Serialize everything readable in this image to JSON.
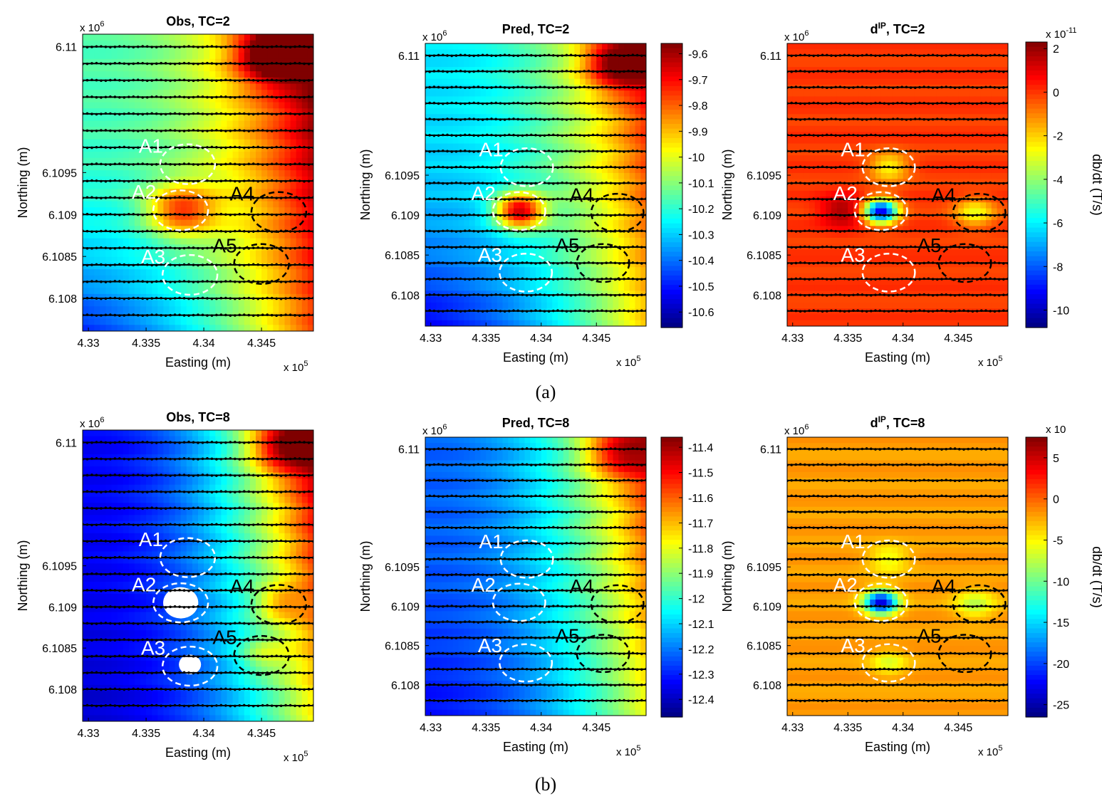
{
  "figure": {
    "captions": [
      "(a)",
      "(b)"
    ],
    "colormap": [
      "#00007f",
      "#0000ff",
      "#007fff",
      "#00ffff",
      "#7fff7f",
      "#ffff00",
      "#ff7f00",
      "#ff0000",
      "#7f0000"
    ],
    "line_color": "#000000",
    "anomaly_ring_colors": {
      "A1": "#ffffff",
      "A2": "#ffffff",
      "A3": "#ffffff",
      "A4": "#000000",
      "A5": "#000000"
    }
  },
  "chart_data": [
    {
      "type": "heatmap",
      "title": "Obs, TC=2",
      "xlabel": "Easting (m)",
      "ylabel": "Northing (m)",
      "x_exponent": "x 10",
      "x_exponent_power": "5",
      "y_exponent": "x 10",
      "y_exponent_power": "6",
      "xticks": [
        "4.33",
        "4.335",
        "4.34",
        "4.345"
      ],
      "yticks": [
        "6.11",
        "6.1095",
        "6.109",
        "6.1085",
        "6.108"
      ],
      "xlim": [
        432950,
        434950
      ],
      "ylim": [
        6107610,
        6111150
      ],
      "field": {
        "background": 0.45,
        "east_gradient": 0.6,
        "south_low": -0.3,
        "blobs": [
          {
            "e": 433800,
            "n": 6109050,
            "amp": 0.35,
            "r": 300
          },
          {
            "e": 434600,
            "n": 6110900,
            "amp": 0.4,
            "r": 300
          }
        ]
      },
      "anomalies": [
        {
          "label": "A1",
          "e": 433860,
          "n": 6109600,
          "r": 250
        },
        {
          "label": "A2",
          "e": 433800,
          "n": 6109050,
          "r": 250
        },
        {
          "label": "A3",
          "e": 433880,
          "n": 6108280,
          "r": 250
        },
        {
          "label": "A4",
          "e": 434650,
          "n": 6109030,
          "r": 250
        },
        {
          "label": "A5",
          "e": 434500,
          "n": 6108410,
          "r": 250
        }
      ],
      "survey_lines_n": [
        6111000,
        6110800,
        6110600,
        6110400,
        6110200,
        6110000,
        6109800,
        6109600,
        6109400,
        6109200,
        6109000,
        6108800,
        6108600,
        6108400,
        6108200,
        6108000,
        6107800
      ]
    },
    {
      "type": "heatmap",
      "title": "Pred, TC=2",
      "xlabel": "Easting (m)",
      "ylabel": "Northing (m)",
      "x_exponent": "x 10",
      "x_exponent_power": "5",
      "y_exponent": "x 10",
      "y_exponent_power": "6",
      "xticks": [
        "4.33",
        "4.335",
        "4.34",
        "4.345"
      ],
      "yticks": [
        "6.11",
        "6.1095",
        "6.109",
        "6.1085",
        "6.108"
      ],
      "xlim": [
        432950,
        434950
      ],
      "ylim": [
        6107610,
        6111150
      ],
      "colorbar": {
        "ticks": [
          "-9.6",
          "-9.7",
          "-9.8",
          "-9.9",
          "-10",
          "-10.1",
          "-10.2",
          "-10.3",
          "-10.4",
          "-10.5",
          "-10.6"
        ],
        "min": -10.66,
        "max": -9.56
      },
      "field": {
        "background": 0.35,
        "east_gradient": 0.55,
        "south_low": -0.25,
        "blobs": [
          {
            "e": 433800,
            "n": 6109050,
            "amp": 0.55,
            "r": 220
          },
          {
            "e": 434700,
            "n": 6110900,
            "amp": 0.35,
            "r": 300
          }
        ]
      },
      "anomalies": [
        {
          "label": "A1",
          "e": 433870,
          "n": 6109600,
          "r": 250
        },
        {
          "label": "A2",
          "e": 433800,
          "n": 6109050,
          "r": 250
        },
        {
          "label": "A3",
          "e": 433860,
          "n": 6108280,
          "r": 250
        },
        {
          "label": "A4",
          "e": 434690,
          "n": 6109030,
          "r": 250
        },
        {
          "label": "A5",
          "e": 434560,
          "n": 6108400,
          "r": 250
        }
      ],
      "survey_lines_n": [
        6111000,
        6110800,
        6110600,
        6110400,
        6110200,
        6110000,
        6109800,
        6109600,
        6109400,
        6109200,
        6109000,
        6108800,
        6108600,
        6108400,
        6108200,
        6108000,
        6107800
      ]
    },
    {
      "type": "heatmap",
      "title": "d",
      "title_superscript": "IP",
      "title_suffix": ", TC=2",
      "xlabel": "Easting (m)",
      "ylabel": "Northing (m)",
      "x_exponent": "x 10",
      "x_exponent_power": "5",
      "y_exponent": "x 10",
      "y_exponent_power": "6",
      "xticks": [
        "4.33",
        "4.335",
        "4.34",
        "4.345"
      ],
      "yticks": [
        "6.11",
        "6.1095",
        "6.109",
        "6.1085",
        "6.108"
      ],
      "xlim": [
        432950,
        434950
      ],
      "ylim": [
        6107610,
        6111150
      ],
      "colorbar": {
        "ticks": [
          "2",
          "0",
          "-2",
          "-4",
          "-6",
          "-8",
          "-10"
        ],
        "min": -10.8,
        "max": 2.3,
        "label": "db/dt (T/s)",
        "exponent": "x 10",
        "exponent_power": "-11"
      },
      "field": {
        "background": 0.82,
        "east_gradient": 0.0,
        "south_low": 0.0,
        "blobs": [
          {
            "e": 433800,
            "n": 6109050,
            "amp": -0.7,
            "r": 150
          },
          {
            "e": 433450,
            "n": 6109050,
            "amp": 0.15,
            "r": 200
          },
          {
            "e": 433870,
            "n": 6109600,
            "amp": -0.2,
            "r": 180
          },
          {
            "e": 434650,
            "n": 6109030,
            "amp": -0.2,
            "r": 180
          }
        ]
      },
      "anomalies": [
        {
          "label": "A1",
          "e": 433870,
          "n": 6109600,
          "r": 250
        },
        {
          "label": "A2",
          "e": 433800,
          "n": 6109050,
          "r": 250
        },
        {
          "label": "A3",
          "e": 433870,
          "n": 6108280,
          "r": 250
        },
        {
          "label": "A4",
          "e": 434690,
          "n": 6109030,
          "r": 250
        },
        {
          "label": "A5",
          "e": 434560,
          "n": 6108400,
          "r": 250
        }
      ],
      "survey_lines_n": [
        6111000,
        6110800,
        6110600,
        6110400,
        6110200,
        6110000,
        6109800,
        6109600,
        6109400,
        6109200,
        6109000,
        6108800,
        6108600,
        6108400,
        6108200,
        6108000,
        6107800
      ]
    },
    {
      "type": "heatmap",
      "title": "Obs, TC=8",
      "xlabel": "Easting (m)",
      "ylabel": "Northing (m)",
      "x_exponent": "x 10",
      "x_exponent_power": "5",
      "y_exponent": "x 10",
      "y_exponent_power": "6",
      "xticks": [
        "4.33",
        "4.335",
        "4.34",
        "4.345"
      ],
      "yticks": [
        "6.11",
        "6.1095",
        "6.109",
        "6.1085",
        "6.108"
      ],
      "xlim": [
        432950,
        434950
      ],
      "ylim": [
        6107610,
        6111150
      ],
      "field": {
        "background": 0.12,
        "east_gradient": 0.85,
        "south_low": -0.05,
        "blobs": [
          {
            "e": 434650,
            "n": 6109030,
            "amp": 0.15,
            "r": 200
          },
          {
            "e": 434500,
            "n": 6108410,
            "amp": 0.12,
            "r": 200
          },
          {
            "e": 434700,
            "n": 6110950,
            "amp": 0.3,
            "r": 300
          }
        ]
      },
      "blanks": [
        {
          "e": 433800,
          "n": 6109050,
          "r": 190
        },
        {
          "e": 433880,
          "n": 6108300,
          "r": 120
        }
      ],
      "anomalies": [
        {
          "label": "A1",
          "e": 433860,
          "n": 6109600,
          "r": 250
        },
        {
          "label": "A2",
          "e": 433800,
          "n": 6109050,
          "r": 250
        },
        {
          "label": "A3",
          "e": 433880,
          "n": 6108280,
          "r": 250
        },
        {
          "label": "A4",
          "e": 434650,
          "n": 6109030,
          "r": 250
        },
        {
          "label": "A5",
          "e": 434500,
          "n": 6108410,
          "r": 250
        }
      ],
      "survey_lines_n": [
        6111000,
        6110800,
        6110600,
        6110400,
        6110200,
        6110000,
        6109800,
        6109600,
        6109400,
        6109200,
        6109000,
        6108800,
        6108600,
        6108400,
        6108200,
        6108000,
        6107800
      ]
    },
    {
      "type": "heatmap",
      "title": "Pred, TC=8",
      "xlabel": "Easting (m)",
      "ylabel": "Northing (m)",
      "x_exponent": "x 10",
      "x_exponent_power": "5",
      "y_exponent": "x 10",
      "y_exponent_power": "6",
      "xticks": [
        "4.33",
        "4.335",
        "4.34",
        "4.345"
      ],
      "yticks": [
        "6.11",
        "6.1095",
        "6.109",
        "6.1085",
        "6.108"
      ],
      "xlim": [
        432950,
        434950
      ],
      "ylim": [
        6107610,
        6111150
      ],
      "colorbar": {
        "ticks": [
          "-11.4",
          "-11.5",
          "-11.6",
          "-11.7",
          "-11.8",
          "-11.9",
          "-12",
          "-12.1",
          "-12.2",
          "-12.3",
          "-12.4"
        ],
        "min": -12.47,
        "max": -11.36
      },
      "field": {
        "background": 0.22,
        "east_gradient": 0.65,
        "south_low": -0.1,
        "blobs": [
          {
            "e": 434700,
            "n": 6110950,
            "amp": 0.25,
            "r": 300
          }
        ]
      },
      "anomalies": [
        {
          "label": "A1",
          "e": 433870,
          "n": 6109600,
          "r": 250
        },
        {
          "label": "A2",
          "e": 433800,
          "n": 6109050,
          "r": 250
        },
        {
          "label": "A3",
          "e": 433860,
          "n": 6108280,
          "r": 250
        },
        {
          "label": "A4",
          "e": 434690,
          "n": 6109030,
          "r": 250
        },
        {
          "label": "A5",
          "e": 434560,
          "n": 6108400,
          "r": 250
        }
      ],
      "survey_lines_n": [
        6111000,
        6110800,
        6110600,
        6110400,
        6110200,
        6110000,
        6109800,
        6109600,
        6109400,
        6109200,
        6109000,
        6108800,
        6108600,
        6108400,
        6108200,
        6108000,
        6107800
      ]
    },
    {
      "type": "heatmap",
      "title": "d",
      "title_superscript": "IP",
      "title_suffix": ", TC=8",
      "xlabel": "Easting (m)",
      "ylabel": "Northing (m)",
      "x_exponent": "x 10",
      "x_exponent_power": "5",
      "y_exponent": "x 10",
      "y_exponent_power": "6",
      "xticks": [
        "4.33",
        "4.335",
        "4.34",
        "4.345"
      ],
      "yticks": [
        "6.11",
        "6.1095",
        "6.109",
        "6.1085",
        "6.108"
      ],
      "xlim": [
        432950,
        434950
      ],
      "ylim": [
        6107610,
        6111150
      ],
      "colorbar": {
        "ticks": [
          "5",
          "0",
          "-5",
          "-10",
          "-15",
          "-20",
          "-25"
        ],
        "min": -26.5,
        "max": 7.5,
        "label": "db/dt (T/s)",
        "exponent": "x 10",
        "exponent_power": ""
      },
      "field": {
        "background": 0.72,
        "east_gradient": 0.0,
        "south_low": 0.0,
        "blobs": [
          {
            "e": 433800,
            "n": 6109050,
            "amp": -0.62,
            "r": 150
          },
          {
            "e": 433870,
            "n": 6109600,
            "amp": -0.12,
            "r": 180
          },
          {
            "e": 434650,
            "n": 6109030,
            "amp": -0.15,
            "r": 180
          },
          {
            "e": 433870,
            "n": 6108280,
            "amp": -0.12,
            "r": 160
          }
        ]
      },
      "anomalies": [
        {
          "label": "A1",
          "e": 433870,
          "n": 6109600,
          "r": 250
        },
        {
          "label": "A2",
          "e": 433800,
          "n": 6109050,
          "r": 250
        },
        {
          "label": "A3",
          "e": 433870,
          "n": 6108280,
          "r": 250
        },
        {
          "label": "A4",
          "e": 434690,
          "n": 6109030,
          "r": 250
        },
        {
          "label": "A5",
          "e": 434560,
          "n": 6108400,
          "r": 250
        }
      ],
      "survey_lines_n": [
        6111000,
        6110800,
        6110600,
        6110400,
        6110200,
        6110000,
        6109800,
        6109600,
        6109400,
        6109200,
        6109000,
        6108800,
        6108600,
        6108400,
        6108200,
        6108000,
        6107800
      ]
    }
  ]
}
